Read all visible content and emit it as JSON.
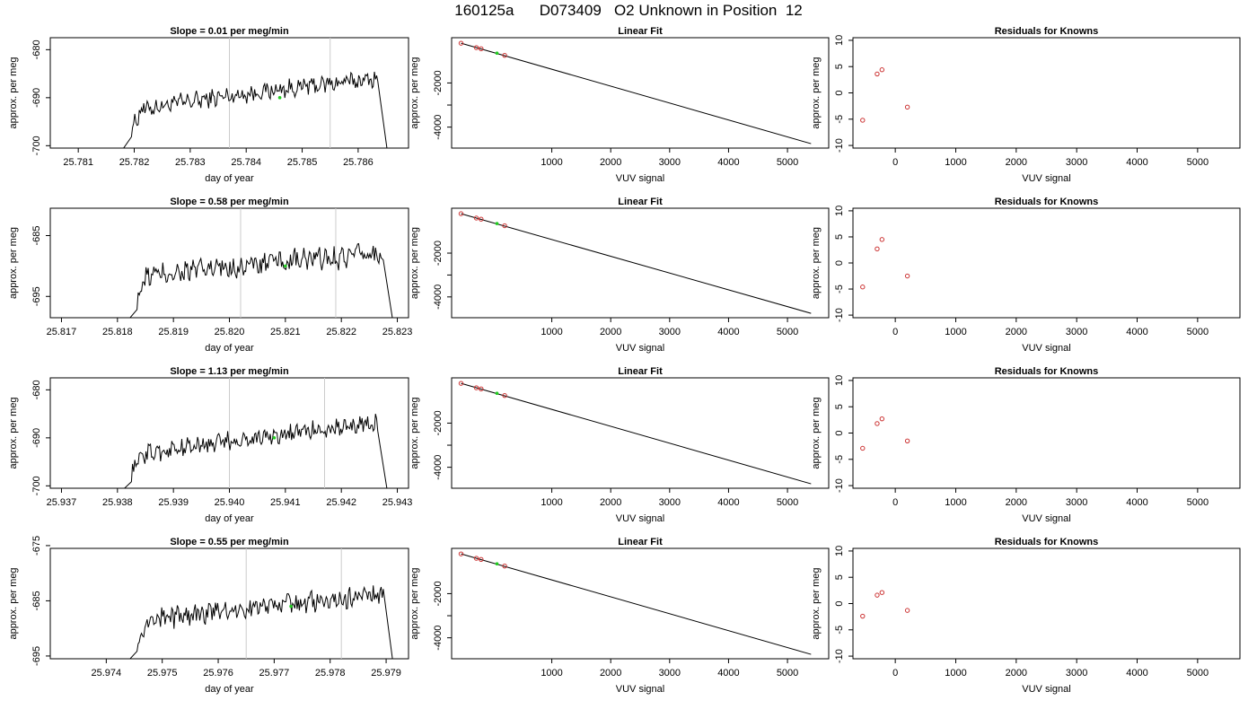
{
  "page_title": "160125a      D073409   O2 Unknown in Position  12",
  "colors": {
    "line": "#000000",
    "marker_green": "#22cc22",
    "known_points": "#cc3333",
    "vline": "#cccccc",
    "axis": "#000000"
  },
  "chart_data": [
    {
      "type": "line",
      "row": 0,
      "col": 0,
      "title": "Slope =  0.01  per meg/min",
      "xlabel": "day of year",
      "ylabel": "approx. per meg",
      "xlim": [
        25.7805,
        25.7869
      ],
      "ylim": [
        -700.5,
        -677.5
      ],
      "xticks": [
        25.781,
        25.782,
        25.783,
        25.784,
        25.785,
        25.786
      ],
      "xtick_labels": [
        "25.781",
        "25.782",
        "25.783",
        "25.784",
        "25.785",
        "25.786"
      ],
      "yticks": [
        -700,
        -690,
        -680
      ],
      "ytick_labels": [
        "-700",
        "-690",
        "-680"
      ],
      "x_start": 25.7818,
      "x_end": 25.7865,
      "y_start": -701,
      "y_level_start": -693,
      "y_level_end": -686,
      "y_end": -701,
      "vlines": [
        25.7837,
        25.7855
      ],
      "marker": {
        "x": 25.7846,
        "y": -690
      }
    },
    {
      "type": "scatter",
      "row": 0,
      "col": 1,
      "title": "Linear Fit",
      "xlabel": "VUV signal",
      "ylabel": "approx. per meg",
      "xlim": [
        -700,
        5700
      ],
      "ylim": [
        -4950,
        50
      ],
      "xticks": [
        1000,
        2000,
        3000,
        4000,
        5000
      ],
      "xtick_labels": [
        "1000",
        "2000",
        "3000",
        "4000",
        "5000"
      ],
      "yticks": [
        -4000,
        -3000,
        -2000
      ],
      "ytick_labels": [
        "-4000",
        "",
        "-2000"
      ],
      "fit_line": {
        "x": [
          -540,
          5400
        ],
        "y": [
          -200,
          -4750
        ]
      },
      "knowns": [
        {
          "x": -540,
          "y": -200
        },
        {
          "x": -280,
          "y": -400
        },
        {
          "x": -200,
          "y": -450
        },
        {
          "x": 200,
          "y": -750
        }
      ],
      "unknown": {
        "x": 70,
        "y": -650
      }
    },
    {
      "type": "scatter",
      "row": 0,
      "col": 2,
      "title": "Residuals for Knowns",
      "xlabel": "VUV signal",
      "ylabel": "approx. per meg",
      "xlim": [
        -700,
        5700
      ],
      "ylim": [
        -10.5,
        10.5
      ],
      "xticks": [
        0,
        1000,
        2000,
        3000,
        4000,
        5000
      ],
      "xtick_labels": [
        "0",
        "1000",
        "2000",
        "3000",
        "4000",
        "5000"
      ],
      "yticks": [
        -10,
        -5,
        0,
        5,
        10
      ],
      "ytick_labels": [
        "-10",
        "-5",
        "0",
        "5",
        "10"
      ],
      "points": [
        {
          "x": -540,
          "y": -5.2
        },
        {
          "x": -300,
          "y": 3.6
        },
        {
          "x": -220,
          "y": 4.4
        },
        {
          "x": 200,
          "y": -2.7
        }
      ]
    },
    {
      "type": "line",
      "row": 1,
      "col": 0,
      "title": "Slope =  0.58  per meg/min",
      "xlabel": "day of year",
      "ylabel": "approx. per meg",
      "xlim": [
        25.8168,
        25.8232
      ],
      "ylim": [
        -698.5,
        -680.5
      ],
      "xticks": [
        25.817,
        25.818,
        25.819,
        25.82,
        25.821,
        25.822,
        25.823
      ],
      "xtick_labels": [
        "25.817",
        "25.818",
        "25.819",
        "25.820",
        "25.821",
        "25.822",
        "25.823"
      ],
      "yticks": [
        -695,
        -685
      ],
      "ytick_labels": [
        "-695",
        "-685"
      ],
      "x_start": 25.8182,
      "x_end": 25.8229,
      "y_start": -699,
      "y_level_start": -692,
      "y_level_end": -688,
      "y_end": -699,
      "vlines": [
        25.8202,
        25.8219
      ],
      "marker": {
        "x": 25.821,
        "y": -690
      }
    },
    {
      "type": "scatter",
      "row": 1,
      "col": 1,
      "title": "Linear Fit",
      "xlabel": "VUV signal",
      "ylabel": "approx. per meg",
      "xlim": [
        -700,
        5700
      ],
      "ylim": [
        -4950,
        50
      ],
      "xticks": [
        1000,
        2000,
        3000,
        4000,
        5000
      ],
      "xtick_labels": [
        "1000",
        "2000",
        "3000",
        "4000",
        "5000"
      ],
      "yticks": [
        -4000,
        -3000,
        -2000
      ],
      "ytick_labels": [
        "-4000",
        "",
        "-2000"
      ],
      "fit_line": {
        "x": [
          -540,
          5400
        ],
        "y": [
          -200,
          -4750
        ]
      },
      "knowns": [
        {
          "x": -540,
          "y": -200
        },
        {
          "x": -280,
          "y": -400
        },
        {
          "x": -200,
          "y": -450
        },
        {
          "x": 200,
          "y": -750
        }
      ],
      "unknown": {
        "x": 70,
        "y": -650
      }
    },
    {
      "type": "scatter",
      "row": 1,
      "col": 2,
      "title": "Residuals for Knowns",
      "xlabel": "VUV signal",
      "ylabel": "approx. per meg",
      "xlim": [
        -700,
        5700
      ],
      "ylim": [
        -10.5,
        10.5
      ],
      "xticks": [
        0,
        1000,
        2000,
        3000,
        4000,
        5000
      ],
      "xtick_labels": [
        "0",
        "1000",
        "2000",
        "3000",
        "4000",
        "5000"
      ],
      "yticks": [
        -10,
        -5,
        0,
        5,
        10
      ],
      "ytick_labels": [
        "-10",
        "-5",
        "0",
        "5",
        "10"
      ],
      "points": [
        {
          "x": -540,
          "y": -4.6
        },
        {
          "x": -300,
          "y": 2.7
        },
        {
          "x": -220,
          "y": 4.5
        },
        {
          "x": 200,
          "y": -2.5
        }
      ]
    },
    {
      "type": "line",
      "row": 2,
      "col": 0,
      "title": "Slope =  1.13  per meg/min",
      "xlabel": "day of year",
      "ylabel": "approx. per meg",
      "xlim": [
        25.9368,
        25.9432
      ],
      "ylim": [
        -700.5,
        -677.5
      ],
      "xticks": [
        25.937,
        25.938,
        25.939,
        25.94,
        25.941,
        25.942,
        25.943
      ],
      "xtick_labels": [
        "25.937",
        "25.938",
        "25.939",
        "25.940",
        "25.941",
        "25.942",
        "25.943"
      ],
      "yticks": [
        -700,
        -690,
        -680
      ],
      "ytick_labels": [
        "-700",
        "-690",
        "-680"
      ],
      "x_start": 25.9381,
      "x_end": 25.9428,
      "y_start": -701,
      "y_level_start": -694,
      "y_level_end": -687,
      "y_end": -701,
      "vlines": [
        25.94,
        25.9417
      ],
      "marker": {
        "x": 25.9408,
        "y": -690
      }
    },
    {
      "type": "scatter",
      "row": 2,
      "col": 1,
      "title": "Linear Fit",
      "xlabel": "VUV signal",
      "ylabel": "approx. per meg",
      "xlim": [
        -700,
        5700
      ],
      "ylim": [
        -4950,
        50
      ],
      "xticks": [
        1000,
        2000,
        3000,
        4000,
        5000
      ],
      "xtick_labels": [
        "1000",
        "2000",
        "3000",
        "4000",
        "5000"
      ],
      "yticks": [
        -4000,
        -3000,
        -2000
      ],
      "ytick_labels": [
        "-4000",
        "",
        "-2000"
      ],
      "fit_line": {
        "x": [
          -540,
          5400
        ],
        "y": [
          -200,
          -4750
        ]
      },
      "knowns": [
        {
          "x": -540,
          "y": -200
        },
        {
          "x": -280,
          "y": -400
        },
        {
          "x": -200,
          "y": -450
        },
        {
          "x": 200,
          "y": -750
        }
      ],
      "unknown": {
        "x": 70,
        "y": -650
      }
    },
    {
      "type": "scatter",
      "row": 2,
      "col": 2,
      "title": "Residuals for Knowns",
      "xlabel": "VUV signal",
      "ylabel": "approx. per meg",
      "xlim": [
        -700,
        5700
      ],
      "ylim": [
        -10.5,
        10.5
      ],
      "xticks": [
        0,
        1000,
        2000,
        3000,
        4000,
        5000
      ],
      "xtick_labels": [
        "0",
        "1000",
        "2000",
        "3000",
        "4000",
        "5000"
      ],
      "yticks": [
        -10,
        -5,
        0,
        5,
        10
      ],
      "ytick_labels": [
        "-10",
        "-5",
        "0",
        "5",
        "10"
      ],
      "points": [
        {
          "x": -540,
          "y": -2.9
        },
        {
          "x": -300,
          "y": 1.8
        },
        {
          "x": -220,
          "y": 2.7
        },
        {
          "x": 200,
          "y": -1.5
        }
      ]
    },
    {
      "type": "line",
      "row": 3,
      "col": 0,
      "title": "Slope =  0.55  per meg/min",
      "xlabel": "day of year",
      "ylabel": "approx. per meg",
      "xlim": [
        25.973,
        25.9794
      ],
      "ylim": [
        -695.5,
        -675.5
      ],
      "xticks": [
        25.974,
        25.975,
        25.976,
        25.977,
        25.978,
        25.979
      ],
      "xtick_labels": [
        "25.974",
        "25.975",
        "25.976",
        "25.977",
        "25.978",
        "25.979"
      ],
      "yticks": [
        -695,
        -685,
        -675
      ],
      "ytick_labels": [
        "-695",
        "-685",
        "-675"
      ],
      "x_start": 25.9744,
      "x_end": 25.9791,
      "y_start": -696,
      "y_level_start": -689,
      "y_level_end": -684,
      "y_end": -696,
      "vlines": [
        25.9765,
        25.9782
      ],
      "marker": {
        "x": 25.9773,
        "y": -686
      }
    },
    {
      "type": "scatter",
      "row": 3,
      "col": 1,
      "title": "Linear Fit",
      "xlabel": "VUV signal",
      "ylabel": "approx. per meg",
      "xlim": [
        -700,
        5700
      ],
      "ylim": [
        -4950,
        50
      ],
      "xticks": [
        1000,
        2000,
        3000,
        4000,
        5000
      ],
      "xtick_labels": [
        "1000",
        "2000",
        "3000",
        "4000",
        "5000"
      ],
      "yticks": [
        -4000,
        -3000,
        -2000
      ],
      "ytick_labels": [
        "-4000",
        "",
        "-2000"
      ],
      "fit_line": {
        "x": [
          -540,
          5400
        ],
        "y": [
          -200,
          -4750
        ]
      },
      "knowns": [
        {
          "x": -540,
          "y": -200
        },
        {
          "x": -280,
          "y": -400
        },
        {
          "x": -200,
          "y": -450
        },
        {
          "x": 200,
          "y": -750
        }
      ],
      "unknown": {
        "x": 70,
        "y": -650
      }
    },
    {
      "type": "scatter",
      "row": 3,
      "col": 2,
      "title": "Residuals for Knowns",
      "xlabel": "VUV signal",
      "ylabel": "approx. per meg",
      "xlim": [
        -700,
        5700
      ],
      "ylim": [
        -10.5,
        10.5
      ],
      "xticks": [
        0,
        1000,
        2000,
        3000,
        4000,
        5000
      ],
      "xtick_labels": [
        "0",
        "1000",
        "2000",
        "3000",
        "4000",
        "5000"
      ],
      "yticks": [
        -10,
        -5,
        0,
        5,
        10
      ],
      "ytick_labels": [
        "-10",
        "-5",
        "0",
        "5",
        "10"
      ],
      "points": [
        {
          "x": -540,
          "y": -2.4
        },
        {
          "x": -300,
          "y": 1.6
        },
        {
          "x": -220,
          "y": 2.1
        },
        {
          "x": 200,
          "y": -1.3
        }
      ]
    }
  ]
}
